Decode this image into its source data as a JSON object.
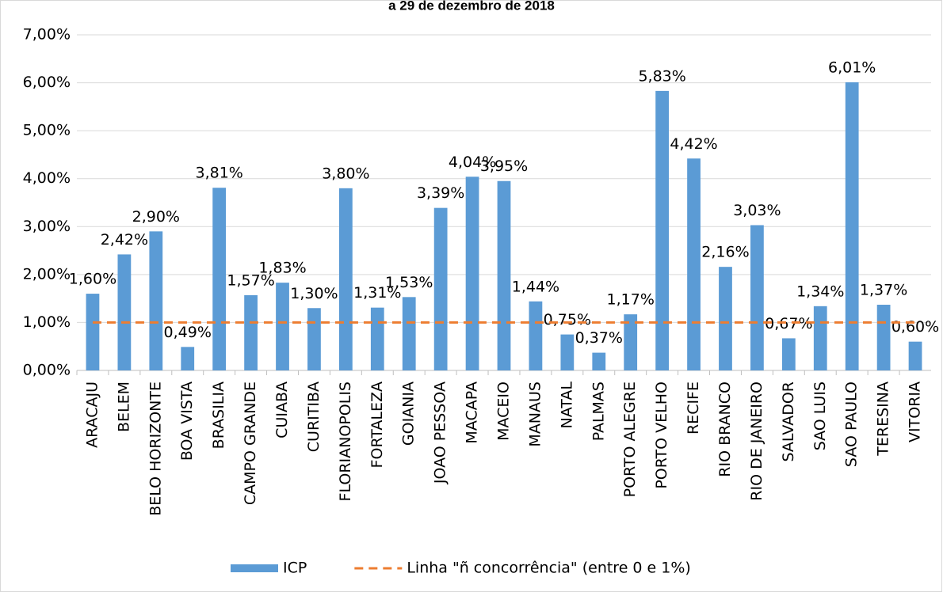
{
  "chart_data": {
    "type": "bar",
    "title": "a 29 de dezembro de 2018",
    "categories": [
      "ARACAJU",
      "BELEM",
      "BELO HORIZONTE",
      "BOA VISTA",
      "BRASILIA",
      "CAMPO GRANDE",
      "CUIABA",
      "CURITIBA",
      "FLORIANOPOLIS",
      "FORTALEZA",
      "GOIANIA",
      "JOAO PESSOA",
      "MACAPA",
      "MACEIO",
      "MANAUS",
      "NATAL",
      "PALMAS",
      "PORTO ALEGRE",
      "PORTO VELHO",
      "RECIFE",
      "RIO BRANCO",
      "RIO DE JANEIRO",
      "SALVADOR",
      "SAO LUIS",
      "SAO PAULO",
      "TERESINA",
      "VITORIA"
    ],
    "series": [
      {
        "name": "ICP",
        "type": "bar",
        "color": "#5b9bd5",
        "values": [
          1.6,
          2.42,
          2.9,
          0.49,
          3.81,
          1.57,
          1.83,
          1.3,
          3.8,
          1.31,
          1.53,
          3.39,
          4.04,
          3.95,
          1.44,
          0.75,
          0.37,
          1.17,
          5.83,
          4.42,
          2.16,
          3.03,
          0.67,
          1.34,
          6.01,
          1.37,
          0.6
        ],
        "value_labels": [
          "1,60%",
          "2,42%",
          "2,90%",
          "0,49%",
          "3,81%",
          "1,57%",
          "1,83%",
          "1,30%",
          "3,80%",
          "1,31%",
          "1,53%",
          "3,39%",
          "4,04%",
          "3,95%",
          "1,44%",
          "0,75%",
          "0,37%",
          "1,17%",
          "5,83%",
          "4,42%",
          "2,16%",
          "3,03%",
          "0,67%",
          "1,34%",
          "6,01%",
          "1,37%",
          "0,60%"
        ]
      },
      {
        "name": "Linha \"ñ concorrência\" (entre 0 e 1%)",
        "type": "line",
        "dashed": true,
        "color": "#ed7d31",
        "values": [
          1,
          1,
          1,
          1,
          1,
          1,
          1,
          1,
          1,
          1,
          1,
          1,
          1,
          1,
          1,
          1,
          1,
          1,
          1,
          1,
          1,
          1,
          1,
          1,
          1,
          1,
          1
        ]
      }
    ],
    "ylim": [
      0,
      7
    ],
    "yticks": [
      {
        "value": 0,
        "label": "0,00%"
      },
      {
        "value": 1,
        "label": "1,00%"
      },
      {
        "value": 2,
        "label": "2,00%"
      },
      {
        "value": 3,
        "label": "3,00%"
      },
      {
        "value": 4,
        "label": "4,00%"
      },
      {
        "value": 5,
        "label": "5,00%"
      },
      {
        "value": 6,
        "label": "6,00%"
      },
      {
        "value": 7,
        "label": "7,00%"
      }
    ],
    "grid": true
  }
}
